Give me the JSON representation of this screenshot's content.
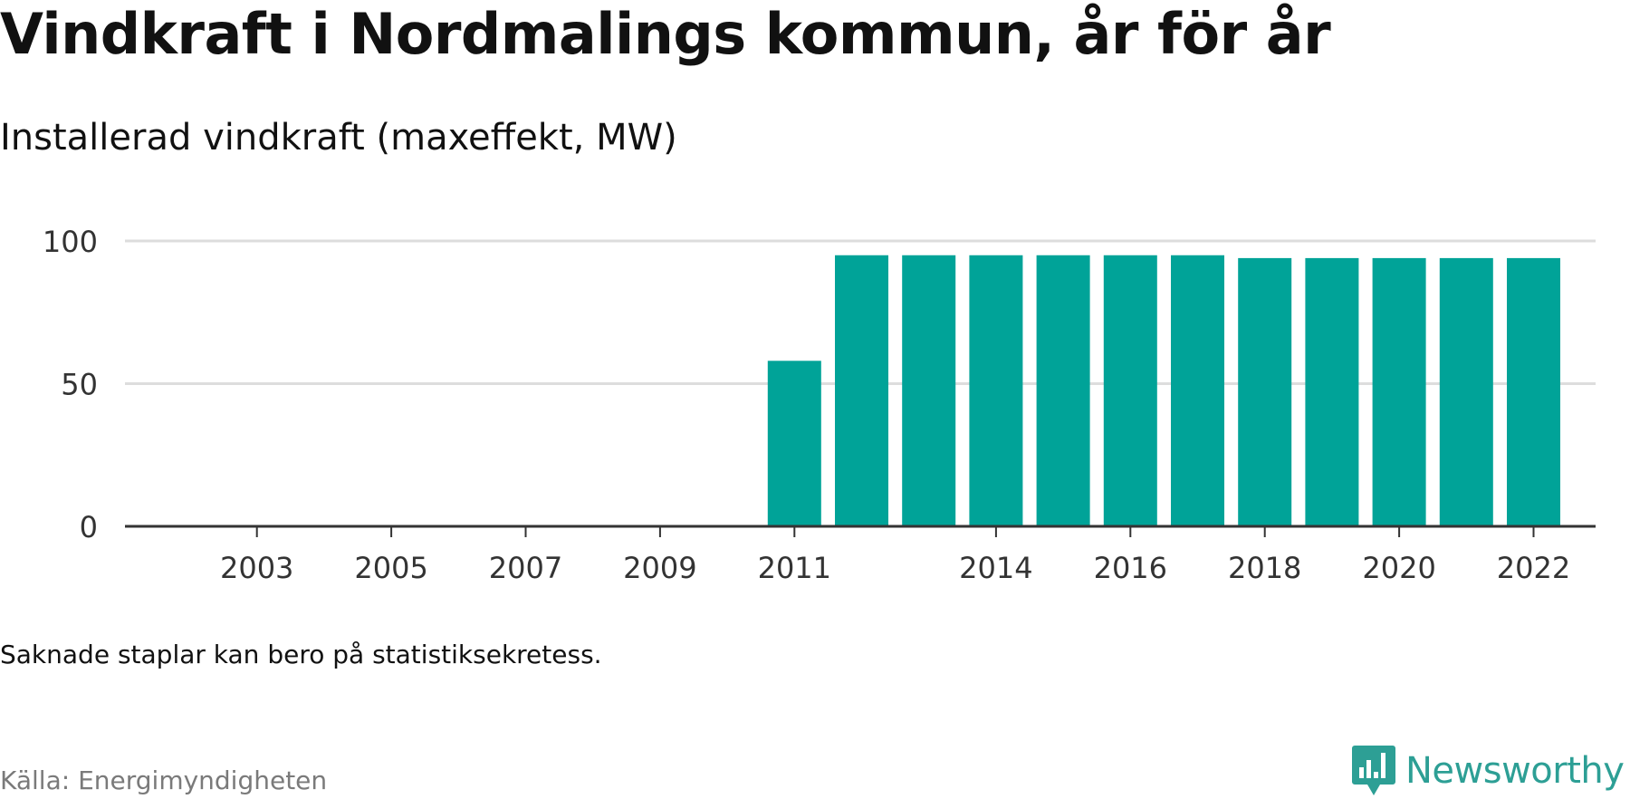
{
  "header": {
    "title": "Vindkraft i Nordmalings kommun, år för år",
    "subtitle": "Installerad vindkraft (maxeffekt, MW)"
  },
  "footer": {
    "note": "Saknade staplar kan bero på statistiksekretess.",
    "source": "Källa: Energimyndigheten",
    "brand_name": "Newsworthy",
    "brand_icon": "bar-chart-speech-bubble-icon"
  },
  "colors": {
    "bar": "#00a398",
    "gridline": "#dddddd",
    "baseline": "#333333",
    "tick_text": "#333333",
    "brand": "#2d9f95",
    "source_text": "#7a7a7a"
  },
  "chart_data": {
    "type": "bar",
    "title": "Vindkraft i Nordmalings kommun, år för år",
    "subtitle": "Installerad vindkraft (maxeffekt, MW)",
    "xlabel": "",
    "ylabel": "",
    "categories": [
      2002,
      2003,
      2004,
      2005,
      2006,
      2007,
      2008,
      2009,
      2010,
      2011,
      2012,
      2013,
      2014,
      2015,
      2016,
      2017,
      2018,
      2019,
      2020,
      2021,
      2022
    ],
    "values": [
      0,
      0,
      0,
      0,
      0,
      0,
      0,
      0,
      0,
      58,
      95,
      95,
      95,
      95,
      95,
      95,
      94,
      94,
      94,
      94,
      94
    ],
    "x_tick_labels": [
      "2003",
      "2005",
      "2007",
      "2009",
      "2011",
      "2014",
      "2016",
      "2018",
      "2020",
      "2022"
    ],
    "y_ticks": [
      0,
      50,
      100
    ],
    "ylim": [
      0,
      100
    ],
    "grid": true,
    "legend": "none"
  }
}
